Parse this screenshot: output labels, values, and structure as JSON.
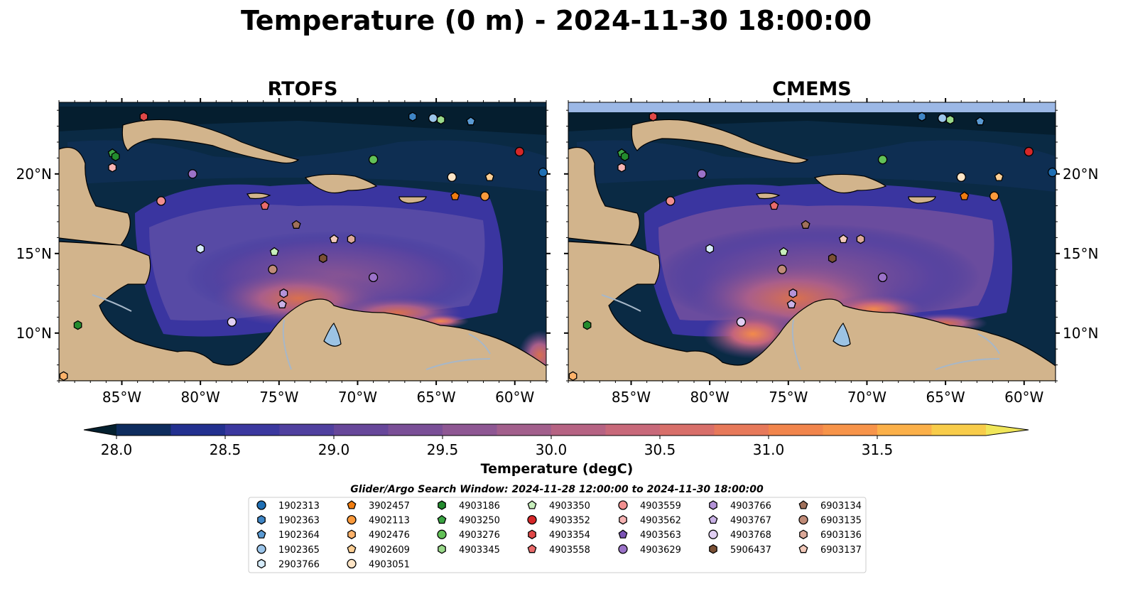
{
  "figure": {
    "title": "Temperature (0 m) - 2024-11-30 18:00:00"
  },
  "chart_data": [
    {
      "type": "heatmap",
      "title": "RTOFS",
      "lon_ticks": [
        -85,
        -80,
        -75,
        -70,
        -65,
        -60
      ],
      "lon_tick_labels": [
        "85°W",
        "80°W",
        "75°W",
        "70°W",
        "65°W",
        "60°W"
      ],
      "lat_ticks": [
        10,
        15,
        20
      ],
      "lat_tick_labels": [
        "10°N",
        "15°N",
        "20°N"
      ],
      "lon_range": [
        -89,
        -58
      ],
      "lat_range": [
        7,
        24.5
      ],
      "land_color": "#d2b48c"
    },
    {
      "type": "heatmap",
      "title": "CMEMS",
      "lon_ticks": [
        -85,
        -80,
        -75,
        -70,
        -65,
        -60
      ],
      "lon_tick_labels": [
        "85°W",
        "80°W",
        "75°W",
        "70°W",
        "65°W",
        "60°W"
      ],
      "lat_ticks": [
        10,
        15,
        20
      ],
      "lat_tick_labels": [
        "10°N",
        "15°N",
        "20°N"
      ],
      "lon_range": [
        -89,
        -58
      ],
      "lat_range": [
        7,
        24.5
      ],
      "land_color": "#d2b48c"
    }
  ],
  "colorbar": {
    "label": "Temperature (degC)",
    "ticks": [
      "28.0",
      "28.5",
      "29.0",
      "29.5",
      "30.0",
      "30.5",
      "31.0",
      "31.5"
    ],
    "tick_values": [
      28.0,
      28.5,
      29.0,
      29.5,
      30.0,
      30.5,
      31.0,
      31.5
    ],
    "extend": "both",
    "colors": [
      "#04202f",
      "#0e2c5e",
      "#22308f",
      "#3b389f",
      "#50409f",
      "#67479a",
      "#7a4f97",
      "#8e5793",
      "#a25f8c",
      "#b66383",
      "#c8697a",
      "#d86f6a",
      "#e7795a",
      "#f1854c",
      "#f7944a",
      "#fbb049",
      "#f8cc4a",
      "#f0e65a"
    ]
  },
  "legend": {
    "title": "Glider/Argo Search Window: 2024-11-28 12:00:00 to 2024-11-30 18:00:00",
    "columns": [
      [
        {
          "id": "1902313",
          "marker": "circle",
          "color": "#1f6fb4"
        },
        {
          "id": "1902363",
          "marker": "hexagon",
          "color": "#3f86c6"
        },
        {
          "id": "1902364",
          "marker": "pentagon",
          "color": "#5a9ad3"
        },
        {
          "id": "1902365",
          "marker": "circle",
          "color": "#9cc5ea"
        },
        {
          "id": "2903766",
          "marker": "hexagon",
          "color": "#d6ecfb"
        }
      ],
      [
        {
          "id": "3902457",
          "marker": "pentagon",
          "color": "#f07c10"
        },
        {
          "id": "4902113",
          "marker": "circle",
          "color": "#fb9a3c"
        },
        {
          "id": "4902476",
          "marker": "hexagon",
          "color": "#fdb26a"
        },
        {
          "id": "4902609",
          "marker": "pentagon",
          "color": "#fdcf95"
        },
        {
          "id": "4903051",
          "marker": "circle",
          "color": "#fee5c6"
        }
      ],
      [
        {
          "id": "4903186",
          "marker": "hexagon",
          "color": "#238b2e"
        },
        {
          "id": "4903250",
          "marker": "pentagon",
          "color": "#3aa443"
        },
        {
          "id": "4903276",
          "marker": "circle",
          "color": "#62c157"
        },
        {
          "id": "4903345",
          "marker": "hexagon",
          "color": "#9ad98a"
        }
      ],
      [
        {
          "id": "4903350",
          "marker": "pentagon",
          "color": "#c7efbc"
        },
        {
          "id": "4903352",
          "marker": "circle",
          "color": "#d62728"
        },
        {
          "id": "4903354",
          "marker": "hexagon",
          "color": "#e04848"
        },
        {
          "id": "4903558",
          "marker": "pentagon",
          "color": "#ea6b6b"
        }
      ],
      [
        {
          "id": "4903559",
          "marker": "circle",
          "color": "#f18f8f"
        },
        {
          "id": "4903562",
          "marker": "hexagon",
          "color": "#f7b4b4"
        },
        {
          "id": "4903563",
          "marker": "pentagon",
          "color": "#7b53b5"
        },
        {
          "id": "4903629",
          "marker": "circle",
          "color": "#9b72c8"
        }
      ],
      [
        {
          "id": "4903766",
          "marker": "hexagon",
          "color": "#b493d8"
        },
        {
          "id": "4903767",
          "marker": "pentagon",
          "color": "#cab2e6"
        },
        {
          "id": "4903768",
          "marker": "circle",
          "color": "#e1cff3"
        },
        {
          "id": "5906437",
          "marker": "hexagon",
          "color": "#7b5035"
        }
      ],
      [
        {
          "id": "6903134",
          "marker": "pentagon",
          "color": "#a0705a"
        },
        {
          "id": "6903135",
          "marker": "circle",
          "color": "#c08b78"
        },
        {
          "id": "6903136",
          "marker": "hexagon",
          "color": "#dba898"
        },
        {
          "id": "6903137",
          "marker": "pentagon",
          "color": "#f2c9ba"
        }
      ]
    ]
  },
  "floats": [
    {
      "id": "1902313",
      "lon": -58.2,
      "lat": 20.1
    },
    {
      "id": "1902363",
      "lon": -66.5,
      "lat": 23.6
    },
    {
      "id": "1902364",
      "lon": -62.8,
      "lat": 23.3
    },
    {
      "id": "1902365",
      "lon": -65.2,
      "lat": 23.5
    },
    {
      "id": "2903766",
      "lon": -80.0,
      "lat": 15.3
    },
    {
      "id": "3902457",
      "lon": -63.8,
      "lat": 18.6
    },
    {
      "id": "4902113",
      "lon": -61.9,
      "lat": 18.6
    },
    {
      "id": "4902476",
      "lon": -88.7,
      "lat": 7.3
    },
    {
      "id": "4902609",
      "lon": -61.6,
      "lat": 19.8
    },
    {
      "id": "4903051",
      "lon": -64.0,
      "lat": 19.8
    },
    {
      "id": "4903186",
      "lon": -87.8,
      "lat": 10.5
    },
    {
      "id": "4903250",
      "lon": -85.6,
      "lat": 21.3
    },
    {
      "id": "4903276",
      "lon": -69.0,
      "lat": 20.9
    },
    {
      "id": "4903345",
      "lon": -64.7,
      "lat": 23.4
    },
    {
      "id": "4903350",
      "lon": -75.3,
      "lat": 15.1
    },
    {
      "id": "4903352",
      "lon": -59.7,
      "lat": 21.4
    },
    {
      "id": "4903354",
      "lon": -83.6,
      "lat": 23.6
    },
    {
      "id": "4903558",
      "lon": -75.9,
      "lat": 18.0
    },
    {
      "id": "4903559",
      "lon": -82.5,
      "lat": 18.3
    },
    {
      "id": "4903562",
      "lon": -85.6,
      "lat": 20.4
    },
    {
      "id": "4903563",
      "lon": -74.8,
      "lat": 11.8
    },
    {
      "id": "4903629",
      "lon": -69.0,
      "lat": 13.5
    },
    {
      "id": "4903766",
      "lon": -74.7,
      "lat": 12.5
    },
    {
      "id": "4903767",
      "lon": -74.8,
      "lat": 11.8
    },
    {
      "id": "4903768",
      "lon": -78.0,
      "lat": 10.7
    },
    {
      "id": "5906437",
      "lon": -72.2,
      "lat": 14.7
    },
    {
      "id": "6903134",
      "lon": -73.9,
      "lat": 16.8
    },
    {
      "id": "6903135",
      "lon": -75.4,
      "lat": 14.0
    },
    {
      "id": "6903136",
      "lon": -70.4,
      "lat": 15.9
    },
    {
      "id": "6903137",
      "lon": -71.5,
      "lat": 15.9
    },
    {
      "id": "4903186b",
      "lon": -85.4,
      "lat": 21.1
    },
    {
      "id": "4903629b",
      "lon": -80.5,
      "lat": 20.0
    }
  ]
}
